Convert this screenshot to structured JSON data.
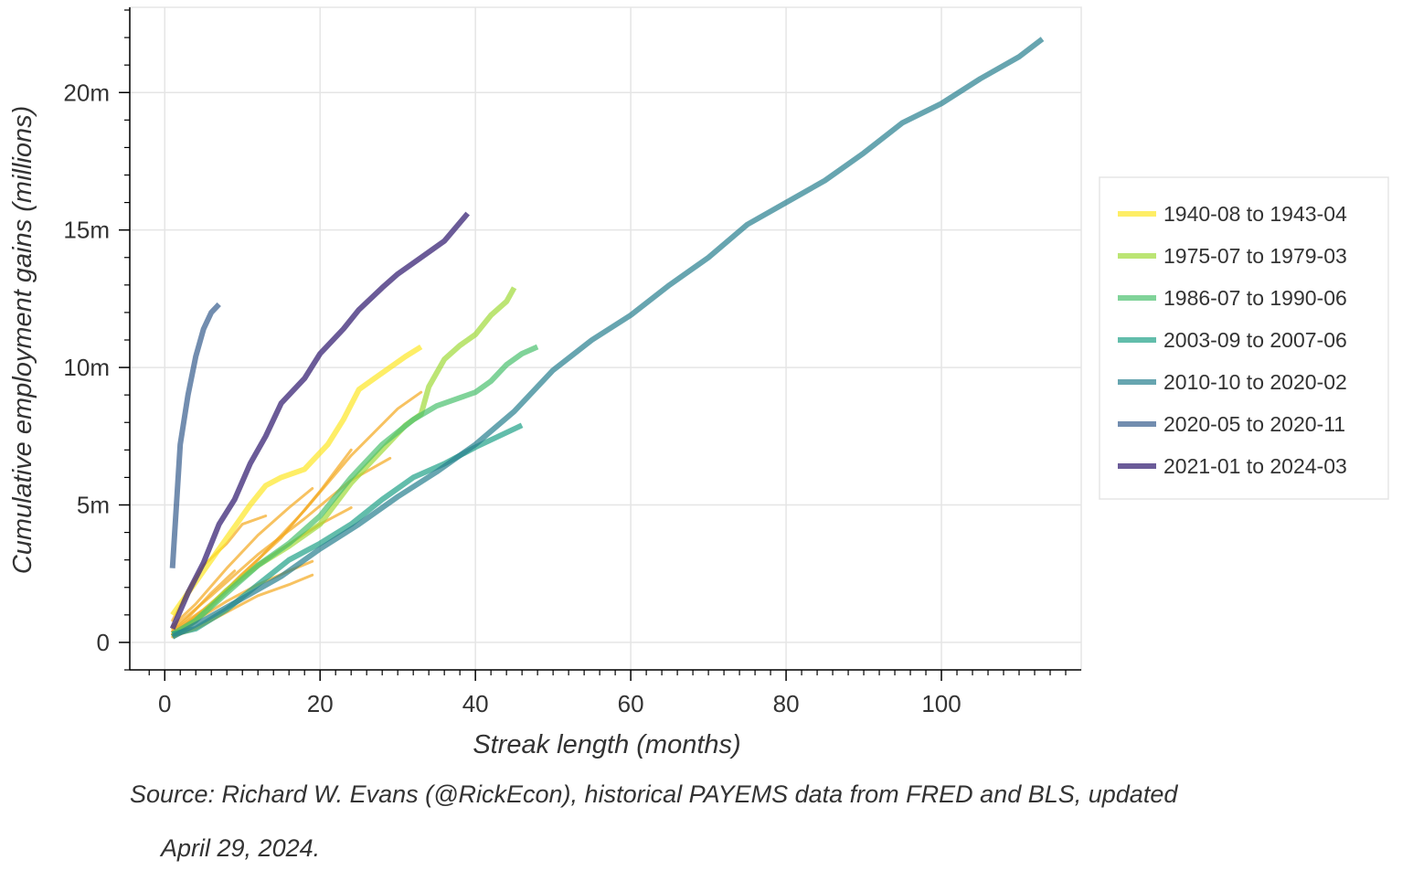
{
  "chart_data": {
    "type": "line",
    "title": "",
    "xlabel": "Streak length (months)",
    "ylabel": "Cumulative employment gains (millions)",
    "xlim": [
      -4.5,
      118
    ],
    "ylim": [
      -1.0,
      23.1
    ],
    "x_ticks": [
      0,
      20,
      40,
      60,
      80,
      100
    ],
    "y_ticks": [
      0,
      5,
      10,
      15,
      20
    ],
    "y_tick_labels": [
      "0",
      "5m",
      "10m",
      "15m",
      "20m"
    ],
    "grid": true,
    "legend_position": "right",
    "source_note_lines": [
      "Source: Richard W. Evans (@RickEcon), historical PAYEMS data from FRED and BLS, updated",
      "April 29, 2024."
    ],
    "series": [
      {
        "name": "1940-08 to 1943-04",
        "color": "#fde725",
        "width": 6,
        "opacity": 0.7,
        "x": [
          1,
          3,
          5,
          8,
          11,
          13,
          15,
          18,
          21,
          23,
          25,
          27,
          29,
          31,
          33
        ],
        "y": [
          1.0,
          1.8,
          2.6,
          3.8,
          5.0,
          5.7,
          6.0,
          6.3,
          7.2,
          8.1,
          9.2,
          9.6,
          10.0,
          10.4,
          10.75
        ]
      },
      {
        "name": "1975-07 to 1979-03",
        "color": "#a0da39",
        "width": 6,
        "opacity": 0.7,
        "x": [
          1,
          4,
          8,
          12,
          16,
          20,
          24,
          28,
          31,
          33,
          34,
          36,
          38,
          40,
          42,
          44,
          45
        ],
        "y": [
          0.2,
          0.8,
          1.9,
          2.8,
          3.5,
          4.3,
          5.8,
          7.0,
          7.9,
          8.3,
          9.3,
          10.3,
          10.8,
          11.2,
          11.9,
          12.4,
          12.9
        ]
      },
      {
        "name": "1986-07 to 1990-06",
        "color": "#4ac16d",
        "width": 6,
        "opacity": 0.7,
        "x": [
          1,
          4,
          8,
          12,
          16,
          20,
          24,
          28,
          32,
          35,
          38,
          40,
          42,
          44,
          46,
          48
        ],
        "y": [
          0.3,
          0.8,
          1.8,
          2.8,
          3.6,
          4.6,
          6.0,
          7.2,
          8.1,
          8.6,
          8.9,
          9.1,
          9.5,
          10.1,
          10.5,
          10.75
        ]
      },
      {
        "name": "2003-09 to 2007-06",
        "color": "#1fa187",
        "width": 6,
        "opacity": 0.7,
        "x": [
          1,
          4,
          8,
          12,
          16,
          20,
          24,
          28,
          32,
          36,
          40,
          43,
          46
        ],
        "y": [
          0.3,
          0.5,
          1.2,
          2.1,
          3.0,
          3.6,
          4.3,
          5.2,
          6.0,
          6.5,
          7.1,
          7.5,
          7.9
        ]
      },
      {
        "name": "2010-10 to 2020-02",
        "color": "#277f8e",
        "width": 6,
        "opacity": 0.7,
        "x": [
          1,
          5,
          10,
          15,
          20,
          25,
          30,
          35,
          40,
          45,
          50,
          55,
          60,
          65,
          70,
          75,
          80,
          85,
          90,
          95,
          100,
          105,
          110,
          113
        ],
        "y": [
          0.2,
          0.8,
          1.6,
          2.4,
          3.4,
          4.3,
          5.3,
          6.2,
          7.2,
          8.4,
          9.9,
          11.0,
          11.9,
          13.0,
          14.0,
          15.2,
          16.0,
          16.8,
          17.8,
          18.9,
          19.6,
          20.5,
          21.3,
          21.95
        ]
      },
      {
        "name": "2020-05 to 2020-11",
        "color": "#365c8d",
        "width": 6,
        "opacity": 0.7,
        "x": [
          1,
          2,
          3,
          4,
          5,
          6,
          7
        ],
        "y": [
          2.7,
          7.2,
          9.0,
          10.4,
          11.4,
          12.0,
          12.3
        ]
      },
      {
        "name": "2021-01 to 2024-03",
        "color": "#46327e",
        "width": 6,
        "opacity": 0.8,
        "x": [
          1,
          3,
          5,
          7,
          9,
          11,
          13,
          15,
          18,
          20,
          23,
          25,
          28,
          30,
          33,
          36,
          39
        ],
        "y": [
          0.5,
          1.8,
          2.9,
          4.3,
          5.2,
          6.5,
          7.5,
          8.7,
          9.6,
          10.5,
          11.4,
          12.1,
          12.9,
          13.4,
          14.0,
          14.6,
          15.6
        ]
      }
    ],
    "other_streaks": {
      "color": "#f3a81e",
      "width": 3,
      "opacity": 0.7,
      "lines": [
        {
          "x": [
            1,
            4,
            8,
            12,
            16,
            19
          ],
          "y": [
            0.2,
            0.5,
            1.1,
            1.7,
            2.1,
            2.45
          ]
        },
        {
          "x": [
            1,
            4,
            8,
            12,
            16,
            19
          ],
          "y": [
            0.3,
            0.8,
            1.5,
            2.1,
            2.6,
            2.95
          ]
        },
        {
          "x": [
            1,
            5,
            10,
            15,
            20,
            24
          ],
          "y": [
            0.4,
            1.2,
            2.4,
            3.4,
            4.3,
            4.9
          ]
        },
        {
          "x": [
            1,
            5,
            10,
            15,
            20,
            24
          ],
          "y": [
            0.3,
            1.1,
            2.5,
            3.8,
            5.5,
            7.0
          ]
        },
        {
          "x": [
            1,
            6,
            12,
            18,
            24,
            29
          ],
          "y": [
            0.5,
            1.7,
            3.2,
            4.5,
            5.9,
            6.7
          ]
        },
        {
          "x": [
            1,
            3,
            5,
            8,
            10,
            13
          ],
          "y": [
            0.8,
            1.9,
            2.8,
            3.6,
            4.3,
            4.6
          ]
        },
        {
          "x": [
            1,
            6,
            12,
            18,
            24,
            30,
            33
          ],
          "y": [
            0.3,
            1.4,
            3.0,
            4.8,
            6.8,
            8.5,
            9.1
          ]
        },
        {
          "x": [
            1,
            4,
            8,
            12,
            16,
            19
          ],
          "y": [
            0.6,
            1.4,
            2.7,
            3.9,
            4.9,
            5.6
          ]
        },
        {
          "x": [
            1,
            3,
            6,
            9
          ],
          "y": [
            0.4,
            0.9,
            1.8,
            2.6
          ]
        }
      ]
    },
    "plot_style": {
      "grid_color": "#e5e5e5",
      "axis_color": "#000000",
      "text_color": "#333333"
    }
  }
}
